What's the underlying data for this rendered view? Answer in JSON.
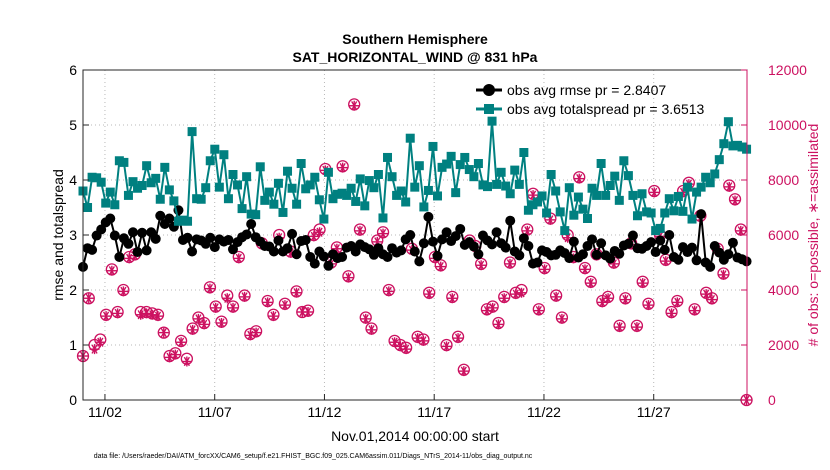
{
  "chart_data": {
    "type": "line",
    "title": "Southern Hemisphere",
    "subtitle": "SAT_HORIZONTAL_WIND @ 831 hPa",
    "xlabel": "Nov.01,2014 00:00:00 start",
    "ylabel_left": "rmse and totalspread",
    "ylabel_right": "# of obs: o=possible, ∗=assimilated",
    "footnote": "data file: /Users/raeder/DAI/ATM_forcXX/CAM6_setup/f.e21.FHIST_BGC.f09_025.CAM6assim.011/Diags_NTrS_2014-11/obs_diag_output.nc",
    "x_ticks": [
      "11/02",
      "11/07",
      "11/12",
      "11/17",
      "11/22",
      "11/27"
    ],
    "x_tick_days": [
      2,
      7,
      12,
      17,
      22,
      27
    ],
    "xlim_days": [
      1,
      31.25
    ],
    "ylim_left": [
      0,
      6
    ],
    "y_ticks_left": [
      "0",
      "1",
      "2",
      "3",
      "4",
      "5",
      "6"
    ],
    "ylim_right": [
      0,
      12000
    ],
    "y_ticks_right": [
      "0",
      "2000",
      "4000",
      "6000",
      "8000",
      "10000",
      "12000"
    ],
    "grid": "dotted",
    "legend_position": "top-right",
    "colors": {
      "rmse": "#000000",
      "spread": "#008080",
      "obs": "#cc1160"
    },
    "series": [
      {
        "name": "obs avg rmse pr = 2.8407",
        "marker": "circle",
        "axis": "left",
        "values": [
          2.42,
          2.76,
          2.73,
          2.99,
          3.1,
          3.23,
          3.3,
          2.99,
          2.6,
          2.94,
          2.84,
          3.05,
          2.69,
          3.04,
          2.72,
          3.05,
          2.93,
          3.35,
          3.2,
          3.3,
          3.15,
          3.45,
          2.91,
          2.95,
          2.7,
          2.92,
          2.9,
          2.84,
          2.95,
          2.78,
          2.92,
          2.88,
          2.91,
          2.74,
          2.87,
          2.96,
          3.01,
          3.2,
          2.96,
          2.88,
          2.8,
          2.79,
          2.7,
          2.9,
          2.7,
          2.76,
          3.02,
          2.65,
          2.89,
          2.91,
          2.6,
          2.48,
          2.7,
          2.61,
          2.44,
          2.65,
          2.58,
          2.6,
          2.77,
          2.8,
          2.7,
          2.83,
          2.78,
          2.74,
          2.64,
          2.76,
          2.65,
          2.6,
          2.76,
          2.68,
          2.72,
          2.92,
          3.0,
          2.7,
          2.52,
          2.85,
          3.33,
          2.88,
          2.62,
          2.92,
          3.05,
          2.89,
          2.98,
          3.11,
          2.82,
          2.87,
          2.79,
          2.65,
          2.99,
          2.9,
          2.83,
          3.05,
          2.85,
          2.77,
          3.26,
          2.7,
          2.63,
          2.94,
          2.8,
          2.48,
          2.5,
          2.72,
          2.69,
          2.63,
          2.64,
          2.72,
          2.67,
          2.58,
          2.88,
          2.59,
          2.65,
          2.8,
          2.92,
          2.64,
          2.85,
          2.63,
          2.57,
          2.71,
          2.66,
          2.81,
          2.84,
          2.99,
          2.76,
          2.75,
          2.8,
          2.87,
          2.69,
          2.9,
          2.73,
          3.0,
          2.6,
          2.55,
          2.78,
          2.69,
          2.77,
          2.54,
          3.38,
          2.5,
          2.42,
          2.8,
          2.68,
          2.55,
          2.65,
          2.86,
          2.59,
          2.56,
          2.52
        ]
      },
      {
        "name": "obs avg totalspread pr = 3.6513",
        "marker": "square",
        "axis": "left",
        "values": [
          3.8,
          3.5,
          4.05,
          4.04,
          3.96,
          3.58,
          3.78,
          3.55,
          4.35,
          4.32,
          3.72,
          3.97,
          3.85,
          3.9,
          4.26,
          3.95,
          4.03,
          3.65,
          4.23,
          3.82,
          3.62,
          3.25,
          3.27,
          3.25,
          4.88,
          3.66,
          3.65,
          3.86,
          4.35,
          4.56,
          3.87,
          4.46,
          3.66,
          4.1,
          3.91,
          3.48,
          4.06,
          3.38,
          3.37,
          4.24,
          3.63,
          3.78,
          3.56,
          3.94,
          3.41,
          4.16,
          3.85,
          3.56,
          4.3,
          3.84,
          3.91,
          4.05,
          3.64,
          3.29,
          4.14,
          3.66,
          3.74,
          3.76,
          3.72,
          3.85,
          3.61,
          4.02,
          3.53,
          3.99,
          3.86,
          4.1,
          3.31,
          4.41,
          4.06,
          3.72,
          3.8,
          3.6,
          4.76,
          3.87,
          4.26,
          3.51,
          3.81,
          4.61,
          3.71,
          4.23,
          4.29,
          4.43,
          3.77,
          4.28,
          4.41,
          4.19,
          4.06,
          4.3,
          3.91,
          3.88,
          5.07,
          3.92,
          4.14,
          3.89,
          3.75,
          4.18,
          3.92,
          4.5,
          3.45,
          3.55,
          3.6,
          3.71,
          3.4,
          4.1,
          3.8,
          3.42,
          3.08,
          3.86,
          3.36,
          3.69,
          3.47,
          3.3,
          3.85,
          3.72,
          4.3,
          3.72,
          3.9,
          4.07,
          3.63,
          4.35,
          4.08,
          3.72,
          3.35,
          3.75,
          3.42,
          3.4,
          3.08,
          3.12,
          3.4,
          3.66,
          3.44,
          3.7,
          3.43,
          3.87,
          3.29,
          3.78,
          3.87,
          4.05,
          3.95,
          4.11,
          4.37,
          4.66,
          5.06,
          4.62,
          4.63,
          4.6,
          4.56
        ]
      },
      {
        "name": "obs possible (o)",
        "marker": "circle-open",
        "axis": "right",
        "values": [
          1600,
          3700,
          2000,
          2200,
          3100,
          4750,
          3200,
          4000,
          5200,
          5300,
          3200,
          3200,
          3150,
          3100,
          2450,
          1600,
          1700,
          2150,
          1500,
          2600,
          3000,
          2800,
          4100,
          3400,
          2850,
          3800,
          3400,
          5200,
          3800,
          2400,
          2500,
          5700,
          3600,
          3100,
          6000,
          3500,
          5400,
          3950,
          3200,
          3250,
          6000,
          6200,
          8400,
          5000,
          5550,
          8500,
          4500,
          10750,
          6200,
          3000,
          2600,
          5800,
          6100,
          4000,
          2150,
          2000,
          1900,
          5500,
          2300,
          2200,
          3900,
          5200,
          4900,
          2000,
          3750,
          2300,
          1100,
          5800,
          5600,
          4950,
          3300,
          3400,
          2800,
          3750,
          5000,
          3900,
          4000,
          6200,
          7500,
          3300,
          4800,
          6600,
          3800,
          3000,
          6000,
          5200,
          8100,
          4800,
          4300,
          5300,
          3600,
          3750,
          5000,
          2700,
          3700,
          5700,
          2700,
          4300,
          3500,
          7600,
          6000,
          5100,
          3200,
          3600,
          7600,
          7900,
          3300,
          6700,
          3900,
          3700,
          5500,
          4600,
          7800,
          7300,
          6200,
          0
        ]
      },
      {
        "name": "obs assimilated (∗)",
        "marker": "asterisk",
        "axis": "right",
        "values": [
          1600,
          3700,
          1850,
          2100,
          3050,
          4700,
          3150,
          3950,
          5150,
          5250,
          3100,
          3150,
          3100,
          3050,
          2450,
          1550,
          1650,
          2100,
          1400,
          2550,
          2950,
          2750,
          4050,
          3350,
          2800,
          3700,
          3350,
          5150,
          3750,
          2350,
          2450,
          5650,
          3550,
          3050,
          5900,
          3450,
          5350,
          3900,
          3200,
          3200,
          5950,
          6100,
          8350,
          4950,
          5500,
          8450,
          4450,
          10700,
          6150,
          2950,
          2550,
          5750,
          6050,
          3950,
          2100,
          1950,
          1850,
          5450,
          2250,
          2150,
          3850,
          5150,
          4850,
          1950,
          3700,
          2250,
          1050,
          5750,
          5550,
          4900,
          3250,
          3350,
          2750,
          3700,
          4950,
          3850,
          3900,
          6150,
          7450,
          3250,
          4750,
          6550,
          3750,
          2950,
          5900,
          5150,
          8050,
          4750,
          4250,
          5250,
          3550,
          3700,
          4950,
          2650,
          3650,
          5650,
          2650,
          4250,
          3450,
          7550,
          5950,
          5050,
          3150,
          3550,
          7550,
          7850,
          3250,
          6650,
          3850,
          3650,
          5450,
          4550,
          7750,
          7250,
          6150,
          0
        ]
      }
    ]
  }
}
